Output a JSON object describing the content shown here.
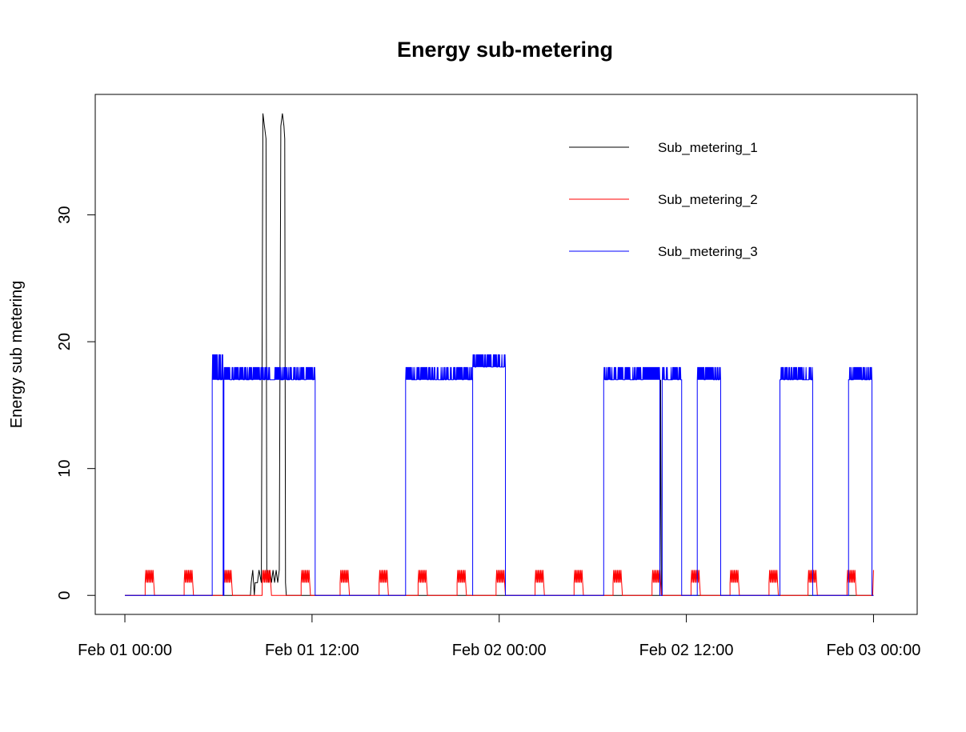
{
  "chart_data": {
    "type": "line",
    "title": "Energy sub-metering",
    "xlabel": "",
    "ylabel": "Energy sub metering",
    "x_ticks": [
      "Feb 01 00:00",
      "Feb 01 12:00",
      "Feb 02 00:00",
      "Feb 02 12:00",
      "Feb 03 00:00"
    ],
    "y_ticks": [
      "0",
      "10",
      "20",
      "30"
    ],
    "x_unit": "hours since Feb 01 00:00",
    "xlim": [
      -1.9,
      50.8
    ],
    "ylim": [
      -1.5,
      39.5
    ],
    "grid": false,
    "legend_position": "top-right",
    "series": [
      {
        "name": "Sub_metering_1",
        "color": "#000000",
        "points": [
          [
            0,
            0
          ],
          [
            8.05,
            0
          ],
          [
            8.1,
            1
          ],
          [
            8.2,
            2
          ],
          [
            8.3,
            0
          ],
          [
            8.35,
            1
          ],
          [
            8.5,
            1
          ],
          [
            8.6,
            2
          ],
          [
            8.75,
            1
          ],
          [
            8.8,
            20
          ],
          [
            8.85,
            38
          ],
          [
            8.95,
            37
          ],
          [
            9.05,
            36
          ],
          [
            9.1,
            2
          ],
          [
            9.2,
            1
          ],
          [
            9.3,
            2
          ],
          [
            9.4,
            1
          ],
          [
            9.5,
            2
          ],
          [
            9.6,
            1
          ],
          [
            9.7,
            2
          ],
          [
            9.8,
            1
          ],
          [
            9.9,
            2
          ],
          [
            10.0,
            37
          ],
          [
            10.1,
            38
          ],
          [
            10.2,
            37
          ],
          [
            10.25,
            36
          ],
          [
            10.3,
            1
          ],
          [
            10.35,
            0
          ],
          [
            24,
            0
          ],
          [
            34.3,
            0
          ],
          [
            34.35,
            17
          ],
          [
            34.4,
            0
          ],
          [
            48,
            0
          ]
        ]
      },
      {
        "name": "Sub_metering_2",
        "color": "#ff0000",
        "pulses": [
          1.3,
          3.8,
          6.3,
          8.8,
          11.3,
          13.8,
          16.3,
          18.8,
          21.3,
          23.8,
          26.3,
          28.8,
          31.3,
          33.8,
          36.3,
          38.8,
          41.3,
          43.8,
          46.3
        ],
        "pulse_duration": 0.55,
        "pulse_values": [
          1,
          2
        ],
        "end_value": 2,
        "end_time": 48
      },
      {
        "name": "Sub_metering_3",
        "color": "#0000ff",
        "baseline": 0,
        "blocks": [
          {
            "start": 5.6,
            "end": 6.3,
            "low": 17,
            "high": 19
          },
          {
            "start": 6.35,
            "end": 12.2,
            "low": 17,
            "high": 18
          },
          {
            "start": 18.0,
            "end": 22.3,
            "low": 17,
            "high": 18
          },
          {
            "start": 22.3,
            "end": 24.4,
            "low": 18,
            "high": 19
          },
          {
            "start": 30.7,
            "end": 34.3,
            "low": 17,
            "high": 18
          },
          {
            "start": 34.45,
            "end": 35.7,
            "low": 17,
            "high": 18
          },
          {
            "start": 36.7,
            "end": 38.2,
            "low": 17,
            "high": 18
          },
          {
            "start": 42.0,
            "end": 44.1,
            "low": 17,
            "high": 18
          },
          {
            "start": 46.4,
            "end": 47.9,
            "low": 17,
            "high": 18
          }
        ]
      }
    ]
  }
}
